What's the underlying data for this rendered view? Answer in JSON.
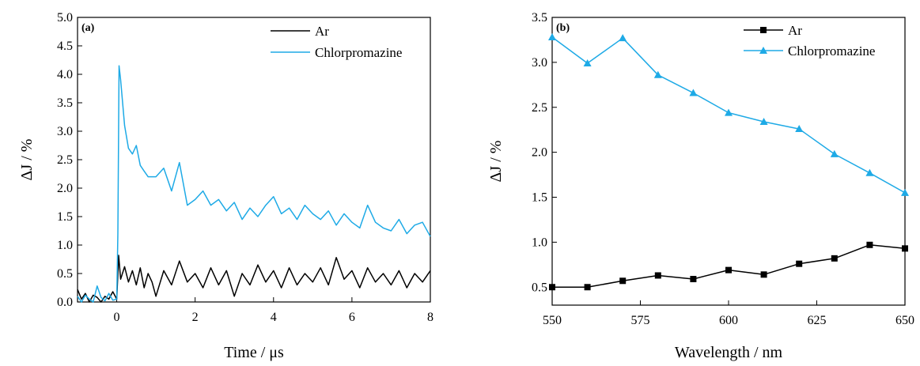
{
  "colors": {
    "ar": "#000000",
    "chlorpromazine": "#1eaae6"
  },
  "chart_data": [
    {
      "type": "line",
      "panel_label": "(a)",
      "xlabel": "Time / μs",
      "ylabel": "ΔJ / %",
      "xlim": [
        -1,
        8
      ],
      "ylim": [
        0,
        5
      ],
      "x_ticks": [
        0,
        2,
        4,
        6,
        8
      ],
      "y_ticks": [
        0.0,
        0.5,
        1.0,
        1.5,
        2.0,
        2.5,
        3.0,
        3.5,
        4.0,
        4.5,
        5.0
      ],
      "x_tick_labels": [
        "0",
        "2",
        "4",
        "6",
        "8"
      ],
      "y_tick_labels": [
        "0.0",
        "0.5",
        "1.0",
        "1.5",
        "2.0",
        "2.5",
        "3.0",
        "3.5",
        "4.0",
        "4.5",
        "5.0"
      ],
      "legend_position": "top-right",
      "series": [
        {
          "name": "Ar",
          "color": "#000000",
          "x": [
            -1.0,
            -0.9,
            -0.8,
            -0.7,
            -0.6,
            -0.5,
            -0.4,
            -0.3,
            -0.2,
            -0.1,
            0.0,
            0.05,
            0.1,
            0.2,
            0.3,
            0.4,
            0.5,
            0.6,
            0.7,
            0.8,
            0.9,
            1.0,
            1.2,
            1.4,
            1.6,
            1.8,
            2.0,
            2.2,
            2.4,
            2.6,
            2.8,
            3.0,
            3.2,
            3.4,
            3.6,
            3.8,
            4.0,
            4.2,
            4.4,
            4.6,
            4.8,
            5.0,
            5.2,
            5.4,
            5.6,
            5.8,
            6.0,
            6.2,
            6.4,
            6.6,
            6.8,
            7.0,
            7.2,
            7.4,
            7.6,
            7.8,
            8.0
          ],
          "y": [
            0.22,
            0.05,
            0.15,
            0.0,
            0.12,
            0.08,
            0.0,
            0.1,
            0.05,
            0.18,
            0.05,
            0.82,
            0.4,
            0.62,
            0.35,
            0.55,
            0.3,
            0.6,
            0.25,
            0.5,
            0.35,
            0.1,
            0.55,
            0.3,
            0.72,
            0.35,
            0.5,
            0.25,
            0.6,
            0.3,
            0.55,
            0.1,
            0.5,
            0.3,
            0.65,
            0.35,
            0.55,
            0.25,
            0.6,
            0.3,
            0.5,
            0.35,
            0.6,
            0.3,
            0.78,
            0.4,
            0.55,
            0.25,
            0.6,
            0.35,
            0.5,
            0.3,
            0.55,
            0.25,
            0.5,
            0.35,
            0.55
          ]
        },
        {
          "name": "Chlorpromazine",
          "color": "#1eaae6",
          "x": [
            -1.0,
            -0.9,
            -0.8,
            -0.7,
            -0.6,
            -0.5,
            -0.4,
            -0.3,
            -0.2,
            -0.1,
            0.0,
            0.03,
            0.06,
            0.1,
            0.15,
            0.2,
            0.3,
            0.4,
            0.5,
            0.6,
            0.7,
            0.8,
            1.0,
            1.2,
            1.4,
            1.6,
            1.8,
            2.0,
            2.2,
            2.4,
            2.6,
            2.8,
            3.0,
            3.2,
            3.4,
            3.6,
            3.8,
            4.0,
            4.2,
            4.4,
            4.6,
            4.8,
            5.0,
            5.2,
            5.4,
            5.6,
            5.8,
            6.0,
            6.2,
            6.4,
            6.6,
            6.8,
            7.0,
            7.2,
            7.4,
            7.6,
            7.8,
            8.0
          ],
          "y": [
            0.1,
            0.0,
            0.12,
            0.05,
            0.0,
            0.28,
            0.08,
            0.02,
            0.15,
            0.03,
            0.05,
            1.2,
            4.15,
            3.9,
            3.5,
            3.1,
            2.7,
            2.6,
            2.75,
            2.4,
            2.3,
            2.2,
            2.2,
            2.35,
            1.95,
            2.45,
            1.7,
            1.8,
            1.95,
            1.7,
            1.8,
            1.6,
            1.75,
            1.45,
            1.65,
            1.5,
            1.7,
            1.85,
            1.55,
            1.65,
            1.45,
            1.7,
            1.55,
            1.45,
            1.6,
            1.35,
            1.55,
            1.4,
            1.3,
            1.7,
            1.4,
            1.3,
            1.25,
            1.45,
            1.2,
            1.35,
            1.4,
            1.15
          ]
        }
      ]
    },
    {
      "type": "line",
      "panel_label": "(b)",
      "xlabel": "Wavelength / nm",
      "ylabel": "ΔJ / %",
      "xlim": [
        550,
        650
      ],
      "ylim": [
        0.3,
        3.5
      ],
      "x_ticks": [
        550,
        575,
        600,
        625,
        650
      ],
      "y_ticks": [
        0.5,
        1.0,
        1.5,
        2.0,
        2.5,
        3.0,
        3.5
      ],
      "x_tick_labels": [
        "550",
        "575",
        "600",
        "625",
        "650"
      ],
      "y_tick_labels": [
        "0.5",
        "1.0",
        "1.5",
        "2.0",
        "2.5",
        "3.0",
        "3.5"
      ],
      "legend_position": "top-right",
      "series": [
        {
          "name": "Ar",
          "color": "#000000",
          "marker": "square",
          "x": [
            550,
            560,
            570,
            580,
            590,
            600,
            610,
            620,
            630,
            640,
            650
          ],
          "y": [
            0.5,
            0.5,
            0.57,
            0.63,
            0.59,
            0.69,
            0.64,
            0.76,
            0.82,
            0.97,
            0.93
          ]
        },
        {
          "name": "Chlorpromazine",
          "color": "#1eaae6",
          "marker": "triangle",
          "x": [
            550,
            560,
            570,
            580,
            590,
            600,
            610,
            620,
            630,
            640,
            650
          ],
          "y": [
            3.28,
            2.99,
            3.27,
            2.86,
            2.66,
            2.44,
            2.34,
            2.26,
            1.98,
            1.77,
            1.55
          ]
        }
      ]
    }
  ]
}
